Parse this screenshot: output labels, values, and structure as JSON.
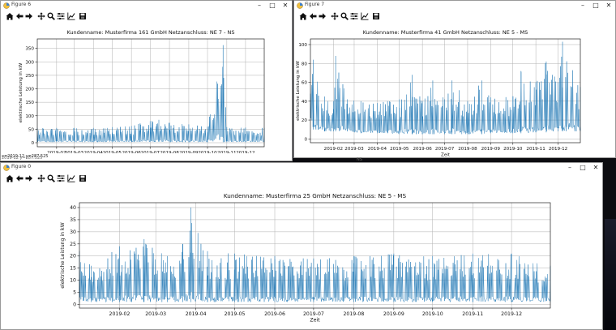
{
  "windows": [
    {
      "title": "Figure 6",
      "toolbar": [
        "home-icon",
        "back-arrow-icon",
        "forward-arrow-icon",
        "pan-icon",
        "zoom-icon",
        "configure-subplots-icon",
        "edit-axis-icon",
        "save-icon"
      ],
      "status": "x=2019-12 y=287.525",
      "chart_data": {
        "type": "line",
        "title": "Kundenname: Musterfirma 161 GmbH    Netzanschluss: NE 7 - NS",
        "xlabel": "Zeit",
        "ylabel": "elektrische Leistung in kW",
        "x_tick_labels": [
          "2019-02",
          "2019-03",
          "2019-04",
          "2019-05",
          "2019-06",
          "2019-07",
          "2019-08",
          "2019-09",
          "2019-10",
          "2019-11",
          "2019-12"
        ],
        "y_ticks": [
          0,
          50,
          100,
          150,
          200,
          250,
          300,
          350
        ],
        "ylim": [
          -15,
          385
        ],
        "xlim": [
          "2019-01-01",
          "2019-12-31"
        ],
        "grid": true,
        "series": [
          {
            "color": "#1f77b4",
            "x": [
              "2019-01-01",
              "2019-02-01",
              "2019-03-01",
              "2019-04-01",
              "2019-05-01",
              "2019-06-01",
              "2019-06-15",
              "2019-07-01",
              "2019-07-15",
              "2019-08-01",
              "2019-09-01",
              "2019-10-01",
              "2019-10-26",
              "2019-11-01",
              "2019-12-01",
              "2019-12-31"
            ],
            "min": [
              2,
              2,
              2,
              2,
              2,
              2,
              3,
              3,
              3,
              2,
              2,
              2,
              2,
              2,
              2,
              2
            ],
            "max": [
              55,
              55,
              55,
              55,
              58,
              62,
              72,
              80,
              85,
              74,
              68,
              60,
              362,
              58,
              56,
              55
            ]
          }
        ]
      }
    },
    {
      "title": "Figure 7",
      "toolbar": [
        "home-icon",
        "back-arrow-icon",
        "forward-arrow-icon",
        "pan-icon",
        "zoom-icon",
        "configure-subplots-icon",
        "edit-axis-icon",
        "save-icon"
      ],
      "status": "",
      "chart_data": {
        "type": "line",
        "title": "Kundenname: Musterfirma 41 GmbH    Netzanschluss: NE 5 - MS",
        "xlabel": "Zeit",
        "ylabel": "elektrische Leistung in kW",
        "x_tick_labels": [
          "2019-02",
          "2019-03",
          "2019-04",
          "2019-05",
          "2019-06",
          "2019-07",
          "2019-08",
          "2019-09",
          "2019-10",
          "2019-11",
          "2019-12"
        ],
        "y_ticks": [
          0,
          20,
          40,
          60,
          80,
          100
        ],
        "ylim": [
          -4,
          106
        ],
        "xlim": [
          "2019-01-01",
          "2019-12-31"
        ],
        "grid": true,
        "series": [
          {
            "color": "#1f77b4",
            "x": [
              "2019-01-01",
              "2019-01-05",
              "2019-01-20",
              "2019-02-01",
              "2019-02-04",
              "2019-02-20",
              "2019-03-10",
              "2019-04-01",
              "2019-04-15",
              "2019-05-01",
              "2019-05-18",
              "2019-06-01",
              "2019-06-15",
              "2019-07-01",
              "2019-07-11",
              "2019-08-01",
              "2019-08-20",
              "2019-09-01",
              "2019-10-01",
              "2019-10-12",
              "2019-11-01",
              "2019-11-15",
              "2019-12-01",
              "2019-12-07",
              "2019-12-31"
            ],
            "min": [
              20,
              10,
              8,
              8,
              8,
              8,
              6,
              6,
              6,
              5,
              5,
              5,
              5,
              5,
              5,
              5,
              5,
              6,
              6,
              6,
              7,
              7,
              8,
              8,
              8
            ],
            "max": [
              48,
              84,
              45,
              40,
              88,
              42,
              40,
              38,
              40,
              42,
              68,
              40,
              62,
              42,
              62,
              40,
              62,
              44,
              45,
              72,
              60,
              82,
              60,
              103,
              55
            ]
          }
        ]
      }
    },
    {
      "title": "Figure 0",
      "toolbar": [
        "home-icon",
        "back-arrow-icon",
        "forward-arrow-icon",
        "pan-icon",
        "zoom-icon",
        "configure-subplots-icon",
        "edit-axis-icon",
        "save-icon"
      ],
      "status": "",
      "chart_data": {
        "type": "line",
        "title": "Kundenname: Musterfirma 25 GmbH    Netzanschluss: NE 5 - MS",
        "xlabel": "Zeit",
        "ylabel": "elektrische Leistung in kW",
        "x_tick_labels": [
          "2019-02",
          "2019-03",
          "2019-04",
          "2019-05",
          "2019-06",
          "2019-07",
          "2019-08",
          "2019-09",
          "2019-10",
          "2019-11",
          "2019-12"
        ],
        "y_ticks": [
          0,
          5,
          10,
          15,
          20,
          25,
          30,
          35,
          40
        ],
        "ylim": [
          -1.5,
          42
        ],
        "xlim": [
          "2019-01-01",
          "2019-12-31"
        ],
        "grid": true,
        "series": [
          {
            "color": "#1f77b4",
            "x": [
              "2019-01-01",
              "2019-01-10",
              "2019-02-01",
              "2019-02-20",
              "2019-03-10",
              "2019-03-22",
              "2019-03-28",
              "2019-04-10",
              "2019-05-01",
              "2019-06-01",
              "2019-07-01",
              "2019-08-01",
              "2019-09-01",
              "2019-10-01",
              "2019-11-01",
              "2019-12-01",
              "2019-12-31"
            ],
            "min": [
              1,
              1,
              1,
              1,
              1,
              1,
              1,
              1,
              1,
              1,
              1,
              1,
              1,
              1,
              1,
              1,
              1
            ],
            "max": [
              22,
              16,
              24,
              27,
              20,
              25,
              40,
              22,
              21,
              20,
              19,
              20,
              21,
              20,
              21,
              21,
              16
            ]
          }
        ]
      }
    }
  ],
  "background_stray_text": [
    "2019-12 y=287.525",
    "NS"
  ]
}
